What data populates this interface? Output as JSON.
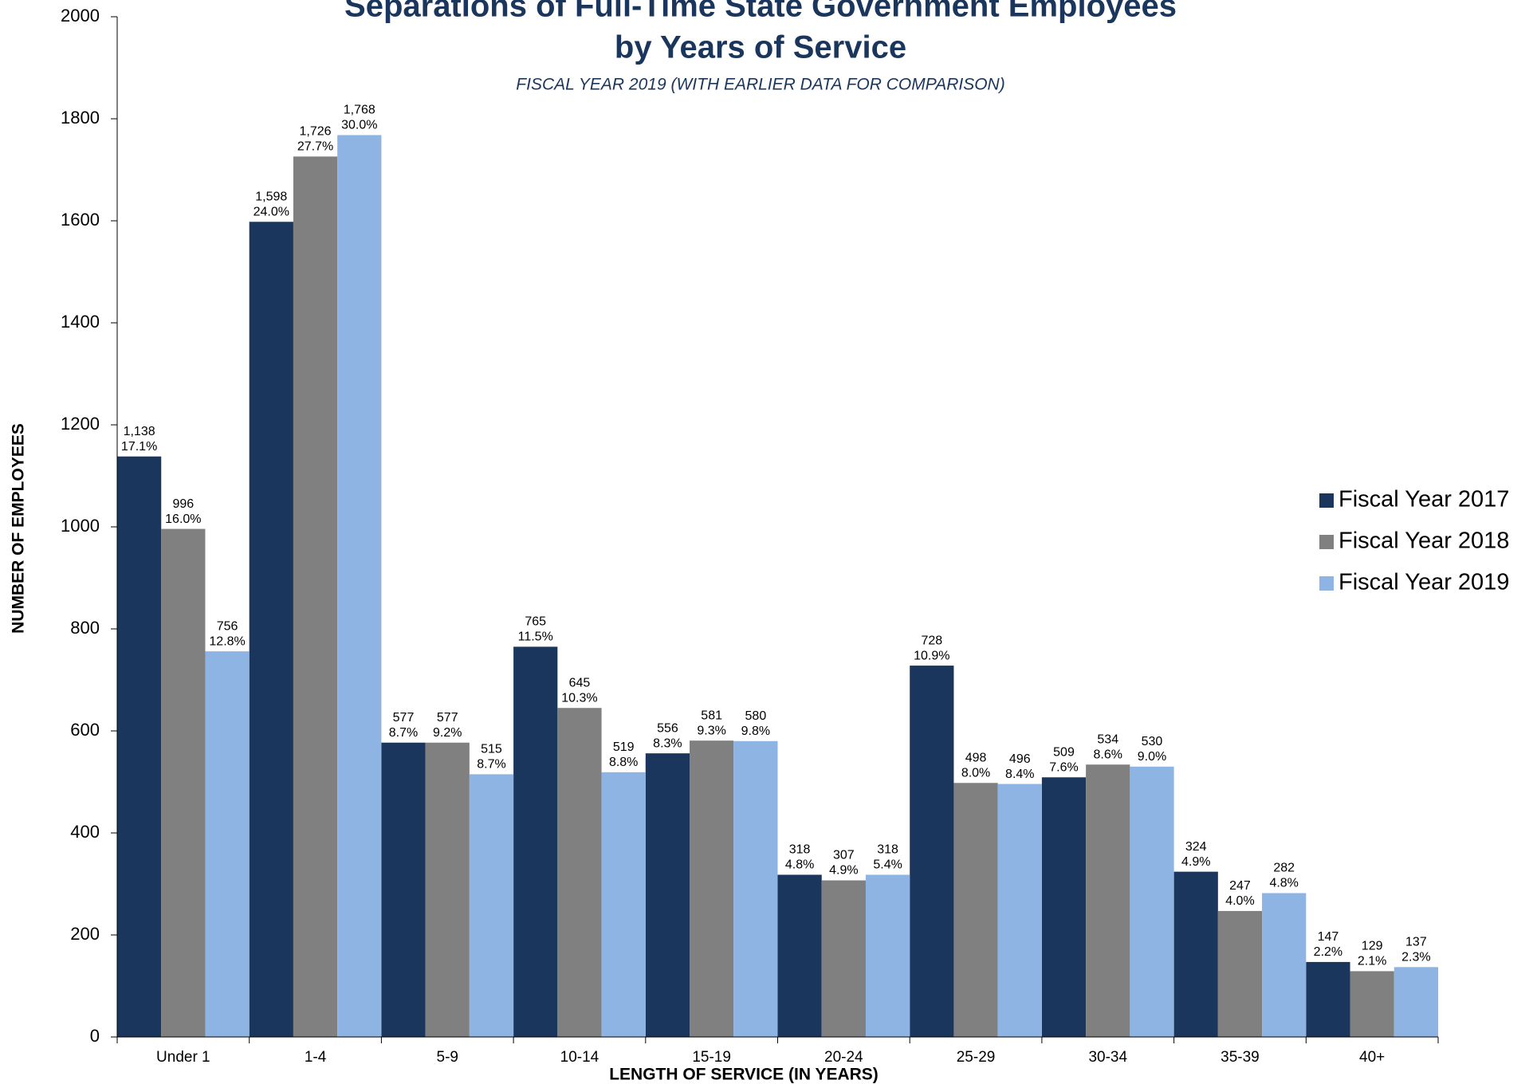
{
  "chart_data": {
    "type": "grouped-bar",
    "title": [
      "Separations of Full-Time State Government Employees",
      "by Years of Service"
    ],
    "subtitle": "FISCAL YEAR 2019 (WITH EARLIER DATA FOR COMPARISON)",
    "x_label": "LENGTH OF SERVICE (IN YEARS)",
    "y_label": "NUMBER OF EMPLOYEES",
    "categories": [
      "Under 1",
      "1-4",
      "5-9",
      "10-14",
      "15-19",
      "20-24",
      "25-29",
      "30-34",
      "35-39",
      "40+"
    ],
    "series": [
      {
        "name": "Fiscal Year 2017",
        "color": "#1a365d",
        "values": [
          1138,
          1598,
          577,
          765,
          556,
          318,
          728,
          509,
          324,
          147
        ],
        "value_labels": [
          "1,138",
          "1,598",
          "577",
          "765",
          "556",
          "318",
          "728",
          "509",
          "324",
          "147"
        ],
        "percent_labels": [
          "17.1%",
          "24.0%",
          "8.7%",
          "11.5%",
          "8.3%",
          "4.8%",
          "10.9%",
          "7.6%",
          "4.9%",
          "2.2%"
        ]
      },
      {
        "name": "Fiscal Year 2018",
        "color": "#808080",
        "values": [
          996,
          1726,
          577,
          645,
          581,
          307,
          498,
          534,
          247,
          129
        ],
        "value_labels": [
          "996",
          "1,726",
          "577",
          "645",
          "581",
          "307",
          "498",
          "534",
          "247",
          "129"
        ],
        "percent_labels": [
          "16.0%",
          "27.7%",
          "9.2%",
          "10.3%",
          "9.3%",
          "4.9%",
          "8.0%",
          "8.6%",
          "4.0%",
          "2.1%"
        ]
      },
      {
        "name": "Fiscal Year 2019",
        "color": "#8db4e2",
        "values": [
          756,
          1768,
          515,
          519,
          580,
          318,
          496,
          530,
          282,
          137
        ],
        "value_labels": [
          "756",
          "1,768",
          "515",
          "519",
          "580",
          "318",
          "496",
          "530",
          "282",
          "137"
        ],
        "percent_labels": [
          "12.8%",
          "30.0%",
          "8.7%",
          "8.8%",
          "9.8%",
          "5.4%",
          "8.4%",
          "9.0%",
          "4.8%",
          "2.3%"
        ]
      }
    ],
    "ylim": [
      0,
      2000
    ],
    "yticks": [
      0,
      200,
      400,
      600,
      800,
      1000,
      1200,
      1400,
      1600,
      1800,
      2000
    ],
    "legend": "right"
  }
}
